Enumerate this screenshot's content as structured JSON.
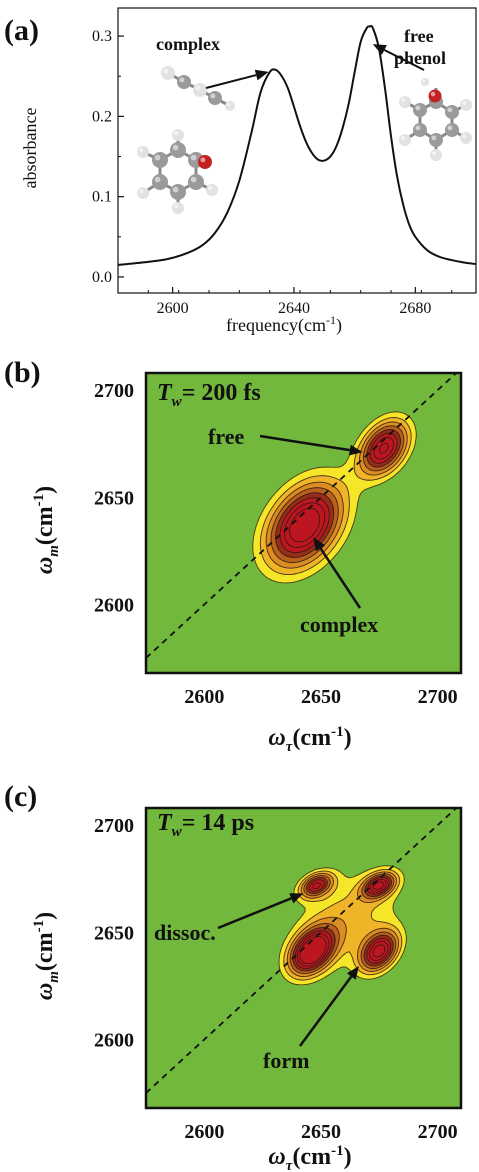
{
  "colors": {
    "background_2d": "#72b83c",
    "contour_levels": [
      "#f6e629",
      "#f0b429",
      "#db8c22",
      "#b8611c",
      "#962d1b",
      "#bd1620"
    ],
    "contour_line": "#2a1a10",
    "line": "#111111",
    "atom_carbon": "#9a9a9a",
    "atom_hydrogen": "#e2e2e2",
    "atom_oxygen": "#c42222"
  },
  "chart_data": [
    {
      "panel": "(a)",
      "type": "line",
      "xlabel": "frequency(cm",
      "xlabel_sup": "-1",
      "xlabel_close": ")",
      "ylabel": "absorbance",
      "xlim": [
        2582,
        2700
      ],
      "ylim": [
        -0.02,
        0.335
      ],
      "xticks": [
        2600,
        2640,
        2680
      ],
      "xtick_labels": [
        "2600",
        "2640",
        "2680"
      ],
      "yticks": [
        0.0,
        0.1,
        0.2,
        0.3
      ],
      "ytick_labels": [
        "0.0",
        "0.1",
        "0.2",
        "0.3"
      ],
      "series": [
        {
          "x": [
            2582,
            2590,
            2598,
            2605,
            2610,
            2614,
            2618,
            2622,
            2626,
            2629,
            2632,
            2634,
            2636,
            2638,
            2640,
            2642,
            2644,
            2646,
            2648,
            2650,
            2652,
            2654,
            2656,
            2658,
            2660,
            2662,
            2664,
            2665,
            2666,
            2668,
            2670,
            2672,
            2674,
            2676,
            2678,
            2680,
            2684,
            2688,
            2692,
            2696,
            2700
          ],
          "y": [
            0.015,
            0.018,
            0.022,
            0.03,
            0.04,
            0.055,
            0.08,
            0.12,
            0.18,
            0.23,
            0.255,
            0.258,
            0.25,
            0.235,
            0.212,
            0.188,
            0.168,
            0.154,
            0.146,
            0.145,
            0.15,
            0.163,
            0.185,
            0.215,
            0.255,
            0.293,
            0.31,
            0.312,
            0.31,
            0.285,
            0.235,
            0.175,
            0.125,
            0.09,
            0.065,
            0.05,
            0.033,
            0.025,
            0.021,
            0.018,
            0.016
          ]
        }
      ],
      "annotations": [
        {
          "text": "complex",
          "target": [
            2633,
            0.258
          ]
        },
        {
          "line1": "free",
          "line2": "phenol",
          "target": [
            2664,
            0.285
          ]
        }
      ]
    },
    {
      "panel": "(b)",
      "type": "heatmap",
      "subtype": "contour",
      "label_T": "T",
      "label_w": "w",
      "label_value": "= 200 fs",
      "xlabel": "ω",
      "xlabel_sub": "τ",
      "xlabel_unit": "(cm",
      "xlabel_sup": "-1",
      "xlabel_close": ")",
      "ylabel": "ω",
      "ylabel_sub": "m",
      "ylabel_unit": "(cm",
      "ylabel_sup": "-1",
      "ylabel_close": ")",
      "xlim": [
        2575,
        2710
      ],
      "ylim": [
        2568,
        2708
      ],
      "xticks": [
        2600,
        2650,
        2700
      ],
      "xtick_labels": [
        "2600",
        "2650",
        "2700"
      ],
      "yticks": [
        2600,
        2650,
        2700
      ],
      "ytick_labels": [
        "2600",
        "2650",
        "2700"
      ],
      "diagonal": true,
      "peaks": [
        {
          "x": 2643,
          "y": 2637,
          "amp": 1.0,
          "sx": 14,
          "sy": 17
        },
        {
          "x": 2677,
          "y": 2673,
          "amp": 0.88,
          "sx": 9,
          "sy": 11
        }
      ],
      "levels": [
        0.15,
        0.25,
        0.35,
        0.45,
        0.55,
        0.65,
        0.75,
        0.85
      ],
      "annotations": [
        {
          "text": "free",
          "target": [
            2673,
            2672
          ]
        },
        {
          "text": "complex",
          "target": [
            2645,
            2635
          ]
        }
      ]
    },
    {
      "panel": "(c)",
      "type": "heatmap",
      "subtype": "contour",
      "label_T": "T",
      "label_w": "w",
      "label_value": "= 14 ps",
      "xlabel": "ω",
      "xlabel_sub": "τ",
      "xlabel_unit": "(cm",
      "xlabel_sup": "-1",
      "xlabel_close": ")",
      "ylabel": "ω",
      "ylabel_sub": "m",
      "ylabel_unit": "(cm",
      "ylabel_sup": "-1",
      "ylabel_close": ")",
      "xlim": [
        2575,
        2710
      ],
      "ylim": [
        2568,
        2708
      ],
      "xticks": [
        2600,
        2650,
        2700
      ],
      "xtick_labels": [
        "2600",
        "2650",
        "2700"
      ],
      "yticks": [
        2600,
        2650,
        2700
      ],
      "ytick_labels": [
        "2600",
        "2650",
        "2700"
      ],
      "diagonal": true,
      "peaks": [
        {
          "x": 2646,
          "y": 2641,
          "amp": 1.0,
          "sx": 8,
          "sy": 9
        },
        {
          "x": 2675,
          "y": 2641,
          "amp": 0.85,
          "sx": 7,
          "sy": 8
        },
        {
          "x": 2648,
          "y": 2672,
          "amp": 0.72,
          "sx": 6,
          "sy": 5
        },
        {
          "x": 2675,
          "y": 2672,
          "amp": 0.78,
          "sx": 6,
          "sy": 5
        },
        {
          "x": 2661,
          "y": 2656,
          "amp": 0.3,
          "sx": 20,
          "sy": 20
        }
      ],
      "levels": [
        0.15,
        0.25,
        0.35,
        0.45,
        0.55,
        0.65,
        0.75,
        0.85
      ],
      "annotations": [
        {
          "text": "dissoc.",
          "target": [
            2645,
            2670
          ]
        },
        {
          "text": "form",
          "target": [
            2665,
            2638
          ]
        }
      ]
    }
  ]
}
